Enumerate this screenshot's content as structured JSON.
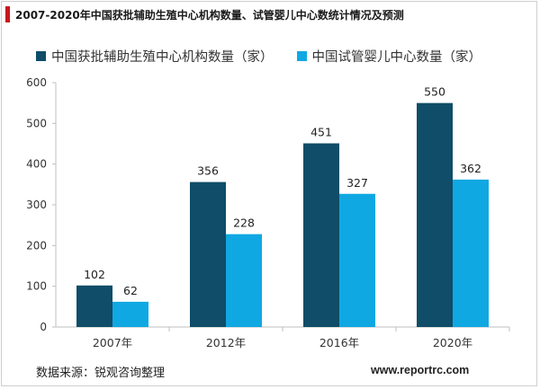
{
  "header": {
    "title": "2007-2020年中国获批辅助生殖中心机构数量、试管婴儿中心数统计情况及预测",
    "accent_color": "#c8161d"
  },
  "chart_data": {
    "type": "bar",
    "title": "2007-2020年中国获批辅助生殖中心机构数量、试管婴儿中心数统计情况及预测",
    "categories": [
      "2007年",
      "2012年",
      "2016年",
      "2020年"
    ],
    "series": [
      {
        "name": "中国获批辅助生殖中心机构数量（家）",
        "values": [
          102,
          356,
          451,
          550
        ],
        "color": "#0f4d68"
      },
      {
        "name": "中国试管婴儿中心数量（家）",
        "values": [
          62,
          228,
          327,
          362
        ],
        "color": "#10a8e2"
      }
    ],
    "yticks": [
      0,
      100,
      200,
      300,
      400,
      500,
      600
    ],
    "ylim": [
      0,
      600
    ],
    "xlabel": "",
    "ylabel": "",
    "grid": false,
    "legend_position": "top-left"
  },
  "footer": {
    "source": "数据来源：锐观咨询整理",
    "website": "www.reportrc.com"
  }
}
